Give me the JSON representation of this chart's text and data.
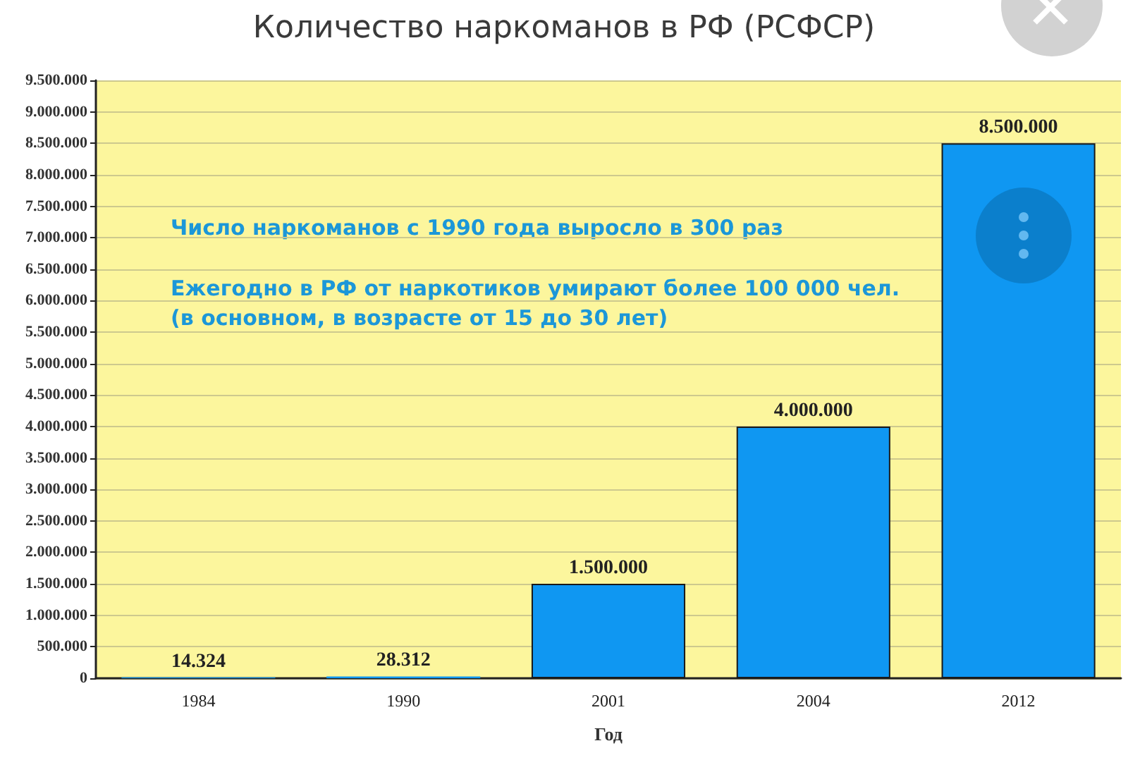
{
  "chart_data": {
    "type": "bar",
    "title": "Количество наркоманов в РФ (РСФСР)",
    "xlabel": "Год",
    "categories": [
      "1984",
      "1990",
      "2001",
      "2004",
      "2012"
    ],
    "values": [
      14324,
      28312,
      1500000,
      4000000,
      8500000
    ],
    "color": "#0f97f2",
    "value_labels": [
      "14.324",
      "28.312",
      "1.500.000",
      "4.000.000",
      "8.500.000"
    ],
    "ylim": [
      0,
      9500000
    ],
    "yticks": [
      {
        "value": 0,
        "label": "0"
      },
      {
        "value": 500000,
        "label": "500.000"
      },
      {
        "value": 1000000,
        "label": "1.000.000"
      },
      {
        "value": 1500000,
        "label": "1.500.000"
      },
      {
        "value": 2000000,
        "label": "2.000.000"
      },
      {
        "value": 2500000,
        "label": "2.500.000"
      },
      {
        "value": 3000000,
        "label": "3.000.000"
      },
      {
        "value": 3500000,
        "label": "3.500.000"
      },
      {
        "value": 4000000,
        "label": "4.000.000"
      },
      {
        "value": 4500000,
        "label": "4.500.000"
      },
      {
        "value": 5000000,
        "label": "5.000.000"
      },
      {
        "value": 5500000,
        "label": "5.500.000"
      },
      {
        "value": 6000000,
        "label": "6.000.000"
      },
      {
        "value": 6500000,
        "label": "6.500.000"
      },
      {
        "value": 7000000,
        "label": "7.000.000"
      },
      {
        "value": 7500000,
        "label": "7.500.000"
      },
      {
        "value": 8000000,
        "label": "8.000.000"
      },
      {
        "value": 8500000,
        "label": "8.500.000"
      },
      {
        "value": 9000000,
        "label": "9.000.000"
      },
      {
        "value": 9500000,
        "label": "9.500.000"
      }
    ],
    "grid": "y",
    "annotations": [
      "Число наркоманов с 1990 года выросло в 300 раз",
      "Ежегодно в РФ от наркотиков умирают более 100 000 чел.\n(в основном, в возрасте от 15 до 30 лет)"
    ]
  }
}
